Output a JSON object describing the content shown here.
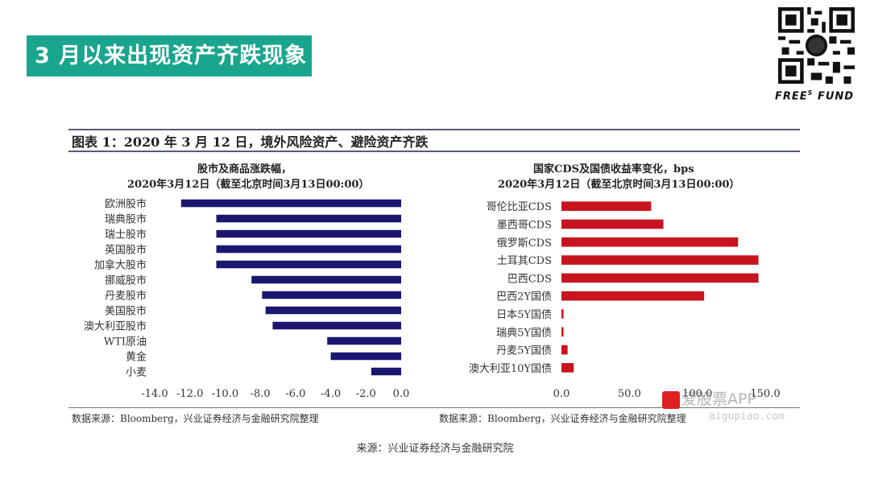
{
  "slide": {
    "title": "3 月以来出现资产齐跌现象",
    "brand": "FREE",
    "brand_sup": "S",
    "brand_suffix": " FUND",
    "figure_caption": "图表 1：2020 年 3 月 12 日，境外风险资产、避险资产齐跌",
    "footer_source": "来源：兴业证券经济与金融研究院",
    "watermark": "爱股票APP",
    "watermark_url": "aigupiao.com"
  },
  "colors": {
    "banner": "#1aa58e",
    "equity_bars": "#1b1770",
    "cds_bars": "#c8141e"
  },
  "chart_data": [
    {
      "type": "bar",
      "orientation": "horizontal",
      "title": "股市及商品涨跌幅，",
      "subtitle": "2020年3月12日（截至北京时间3月13日00:00）",
      "categories": [
        "欧洲股市",
        "瑞典股市",
        "瑞士股市",
        "英国股市",
        "加拿大股市",
        "挪威股市",
        "丹麦股市",
        "美国股市",
        "澳大利亚股市",
        "WTI原油",
        "黄金",
        "小麦"
      ],
      "values": [
        -12.5,
        -10.5,
        -10.5,
        -10.5,
        -10.5,
        -8.5,
        -7.9,
        -7.7,
        -7.3,
        -4.2,
        -4.0,
        -1.7
      ],
      "xlim": [
        -14,
        0
      ],
      "xticks": [
        "-14.0",
        "-12.0",
        "-10.0",
        "-8.0",
        "-6.0",
        "-4.0",
        "-2.0",
        "0.0"
      ],
      "source": "数据来源：Bloomberg，兴业证券经济与金融研究院整理"
    },
    {
      "type": "bar",
      "orientation": "horizontal",
      "title": "国家CDS及国债收益率变化，bps",
      "subtitle": "2020年3月12日（截至北京时间3月13日00:00）",
      "categories": [
        "哥伦比亚CDS",
        "墨西哥CDS",
        "俄罗斯CDS",
        "土耳其CDS",
        "巴西CDS",
        "巴西2Y国债",
        "日本5Y国债",
        "瑞典5Y国债",
        "丹麦5Y国债",
        "澳大利亚10Y国债"
      ],
      "values": [
        66,
        75,
        130,
        145,
        145,
        105,
        1.5,
        1.5,
        4.5,
        9
      ],
      "xlim": [
        0,
        150
      ],
      "xticks": [
        "0.0",
        "50.0",
        "100.0",
        "150.0"
      ],
      "source": "数据来源：Bloomberg，兴业证券经济与金融研究院整理"
    }
  ]
}
